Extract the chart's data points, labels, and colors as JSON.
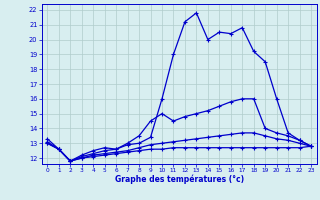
{
  "xlabel": "Graphe des températures (°c)",
  "bg_color": "#d8eef0",
  "line_color": "#0000cc",
  "grid_color": "#b0cccc",
  "xticks": [
    0,
    1,
    2,
    3,
    4,
    5,
    6,
    7,
    8,
    9,
    10,
    11,
    12,
    13,
    14,
    15,
    16,
    17,
    18,
    19,
    20,
    21,
    22,
    23
  ],
  "yticks": [
    12,
    13,
    14,
    15,
    16,
    17,
    18,
    19,
    20,
    21,
    22
  ],
  "ylim": [
    11.6,
    22.4
  ],
  "xlim": [
    -0.5,
    23.5
  ],
  "series": [
    [
      13.3,
      12.6,
      11.8,
      12.2,
      12.5,
      12.7,
      12.6,
      12.9,
      13.0,
      13.4,
      16.0,
      19.0,
      21.2,
      21.8,
      20.0,
      20.5,
      20.4,
      20.8,
      19.2,
      18.5,
      16.0,
      13.7,
      13.2,
      12.8
    ],
    [
      13.1,
      12.6,
      11.8,
      12.1,
      12.3,
      12.5,
      12.6,
      13.0,
      13.5,
      14.5,
      15.0,
      14.5,
      14.8,
      15.0,
      15.2,
      15.5,
      15.8,
      16.0,
      16.0,
      14.0,
      13.7,
      13.5,
      13.2,
      12.8
    ],
    [
      13.0,
      12.6,
      11.8,
      12.0,
      12.2,
      12.3,
      12.4,
      12.5,
      12.7,
      12.9,
      13.0,
      13.1,
      13.2,
      13.3,
      13.4,
      13.5,
      13.6,
      13.7,
      13.7,
      13.5,
      13.3,
      13.2,
      13.0,
      12.8
    ],
    [
      13.0,
      12.6,
      11.8,
      12.0,
      12.1,
      12.2,
      12.3,
      12.4,
      12.5,
      12.6,
      12.6,
      12.7,
      12.7,
      12.7,
      12.7,
      12.7,
      12.7,
      12.7,
      12.7,
      12.7,
      12.7,
      12.7,
      12.7,
      12.8
    ]
  ]
}
